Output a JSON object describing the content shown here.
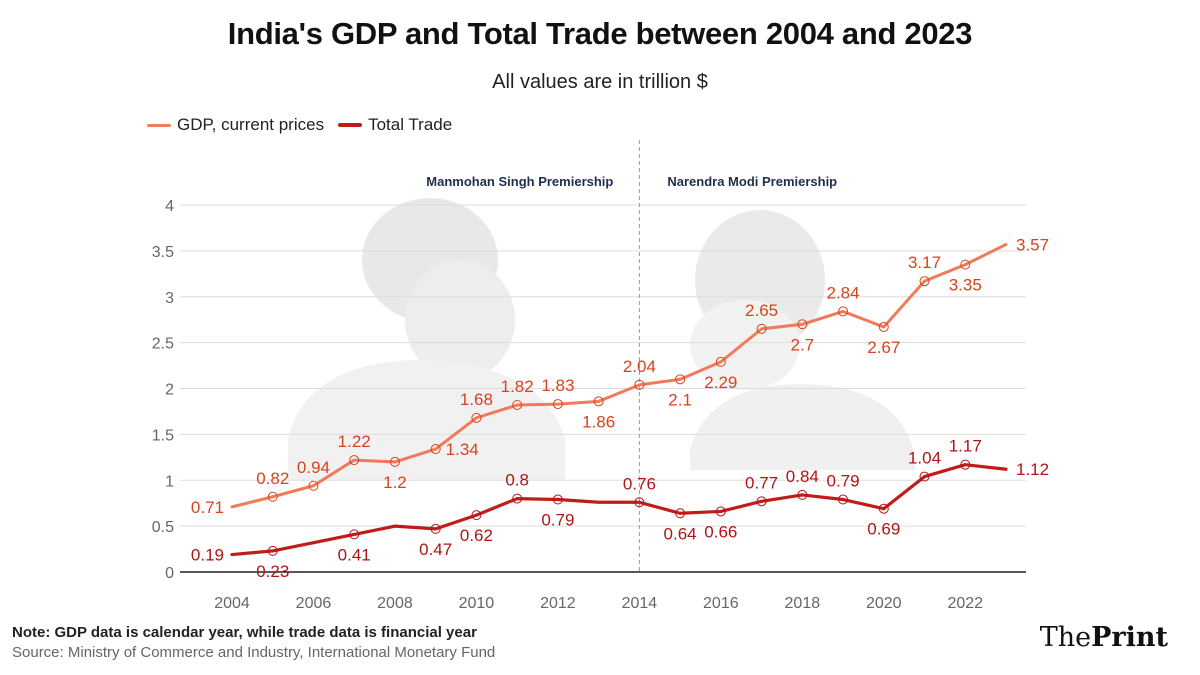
{
  "title": "India's GDP and Total Trade between 2004 and 2023",
  "subtitle": "All values are in trillion $",
  "legend": {
    "gdp": "GDP, current prices",
    "trade": "Total Trade"
  },
  "footer": {
    "note": "Note: GDP data is calendar year, while trade data is financial year",
    "source": "Source: Ministry of Commerce and Industry, International Monetary Fund"
  },
  "brand": {
    "prefix": "The",
    "suffix": "Print"
  },
  "colors": {
    "gdp": "#f07a5a",
    "trade": "#c01c1c",
    "label_gdp": "#d8431f",
    "label_trade": "#b01515",
    "divider": "#999999"
  },
  "chart_data": {
    "type": "line",
    "title": "India's GDP and Total Trade between 2004 and 2023",
    "xlabel": "",
    "ylabel": "",
    "x": [
      2004,
      2005,
      2006,
      2007,
      2008,
      2009,
      2010,
      2011,
      2012,
      2013,
      2014,
      2015,
      2016,
      2017,
      2018,
      2019,
      2020,
      2021,
      2022,
      2023
    ],
    "x_ticks": [
      "2004",
      "2006",
      "2008",
      "2010",
      "2012",
      "2014",
      "2016",
      "2018",
      "2020",
      "2022"
    ],
    "y_ticks": [
      "0",
      "0.5",
      "1",
      "1.5",
      "2",
      "2.5",
      "3",
      "3.5",
      "4"
    ],
    "ylim": [
      0,
      4
    ],
    "grid": true,
    "series": [
      {
        "name": "GDP, current prices",
        "values": [
          0.71,
          0.82,
          0.94,
          1.22,
          1.2,
          1.34,
          1.68,
          1.82,
          1.83,
          1.86,
          2.04,
          2.1,
          2.29,
          2.65,
          2.7,
          2.84,
          2.67,
          3.17,
          3.35,
          3.57
        ],
        "labels": [
          "0.71",
          "0.82",
          "0.94",
          "1.22",
          "1.2",
          "1.34",
          "1.68",
          "1.82",
          "1.83",
          "1.86",
          "2.04",
          "2.1",
          "2.29",
          "2.65",
          "2.7",
          "2.84",
          "2.67",
          "3.17",
          "3.35",
          "3.57"
        ],
        "label_pos": [
          "left",
          "above",
          "above",
          "above",
          "below",
          "right",
          "above",
          "above",
          "above",
          "below",
          "above",
          "below",
          "below",
          "above",
          "below",
          "above",
          "below",
          "above",
          "below",
          "right"
        ]
      },
      {
        "name": "Total Trade",
        "values": [
          0.19,
          0.23,
          0.32,
          0.41,
          0.5,
          0.47,
          0.62,
          0.8,
          0.79,
          0.76,
          0.76,
          0.64,
          0.66,
          0.77,
          0.84,
          0.79,
          0.69,
          1.04,
          1.17,
          1.12
        ],
        "labels": [
          "0.19",
          "0.23",
          null,
          "0.41",
          null,
          "0.47",
          "0.62",
          "0.8",
          "0.79",
          null,
          "0.76",
          "0.64",
          "0.66",
          "0.77",
          "0.84",
          "0.79",
          "0.69",
          "1.04",
          "1.17",
          "1.12"
        ],
        "markers": [
          false,
          true,
          false,
          true,
          false,
          true,
          true,
          true,
          true,
          false,
          true,
          true,
          true,
          true,
          true,
          true,
          true,
          true,
          true,
          false
        ],
        "label_pos": [
          "left",
          "below",
          null,
          "below",
          null,
          "below",
          "below",
          "above",
          "below",
          null,
          "above",
          "below",
          "below",
          "above",
          "above",
          "above",
          "below",
          "above",
          "above",
          "right"
        ]
      }
    ],
    "annotations": [
      {
        "text": "Manmohan Singh Premiership",
        "side": "left-of-divider"
      },
      {
        "text": "Narendra Modi Premiership",
        "side": "right-of-divider"
      }
    ],
    "divider_at_x": 2014
  }
}
